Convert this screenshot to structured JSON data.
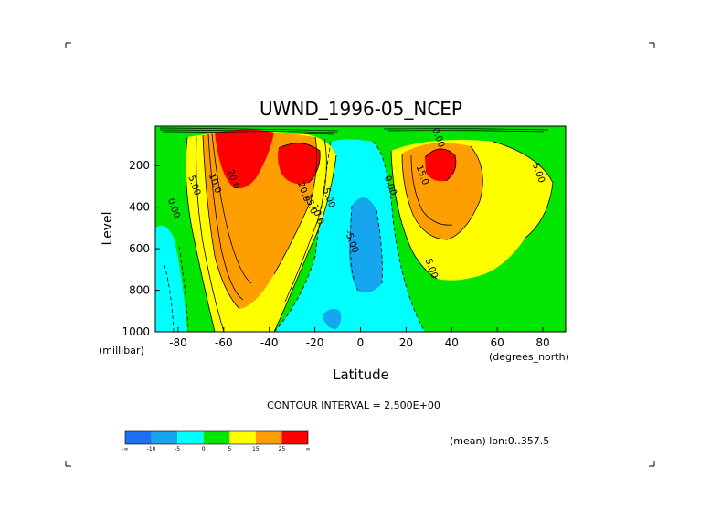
{
  "chart_data": {
    "type": "contour",
    "title": "UWND_1996-05_NCEP",
    "xlabel": "Latitude",
    "x_units": "(degrees_north)",
    "ylabel": "Level",
    "y_units": "(millibar)",
    "x_ticks": [
      -80,
      -60,
      -40,
      -20,
      0,
      20,
      40,
      60,
      80
    ],
    "y_ticks": [
      200,
      400,
      600,
      800,
      1000
    ],
    "xlim": [
      -90,
      90
    ],
    "ylim": [
      1000,
      10
    ],
    "contour_interval": "CONTOUR INTERVAL = 2.500E+00",
    "footer_note": "(mean) lon:0..357.5",
    "legend": {
      "boundaries": [
        "-∞",
        "-10",
        "-5",
        "0",
        "5",
        "15",
        "25",
        "∞"
      ],
      "colors": [
        "#1e6ff5",
        "#15a6ef",
        "#00ffff",
        "#00e600",
        "#ffff00",
        "#ff9e00",
        "#ff0000"
      ]
    },
    "contour_labels": [
      {
        "text": "0.00",
        "lat": -83,
        "p": 410
      },
      {
        "text": "5.00",
        "lat": -74,
        "p": 300
      },
      {
        "text": "10.0",
        "lat": -65,
        "p": 290
      },
      {
        "text": "20.0",
        "lat": -57,
        "p": 270
      },
      {
        "text": "20.0",
        "lat": -26,
        "p": 330
      },
      {
        "text": "15.0",
        "lat": -23,
        "p": 390
      },
      {
        "text": "10.0",
        "lat": -20,
        "p": 440
      },
      {
        "text": "5.00",
        "lat": -15,
        "p": 360
      },
      {
        "text": "-5.00",
        "lat": -5,
        "p": 570
      },
      {
        "text": "0.00",
        "lat": 12,
        "p": 300
      },
      {
        "text": "15.0",
        "lat": 26,
        "p": 250
      },
      {
        "text": "5.00",
        "lat": 30,
        "p": 700
      },
      {
        "text": "0.00",
        "lat": 33,
        "p": 70
      },
      {
        "text": "5.00",
        "lat": 77,
        "p": 240
      }
    ]
  }
}
